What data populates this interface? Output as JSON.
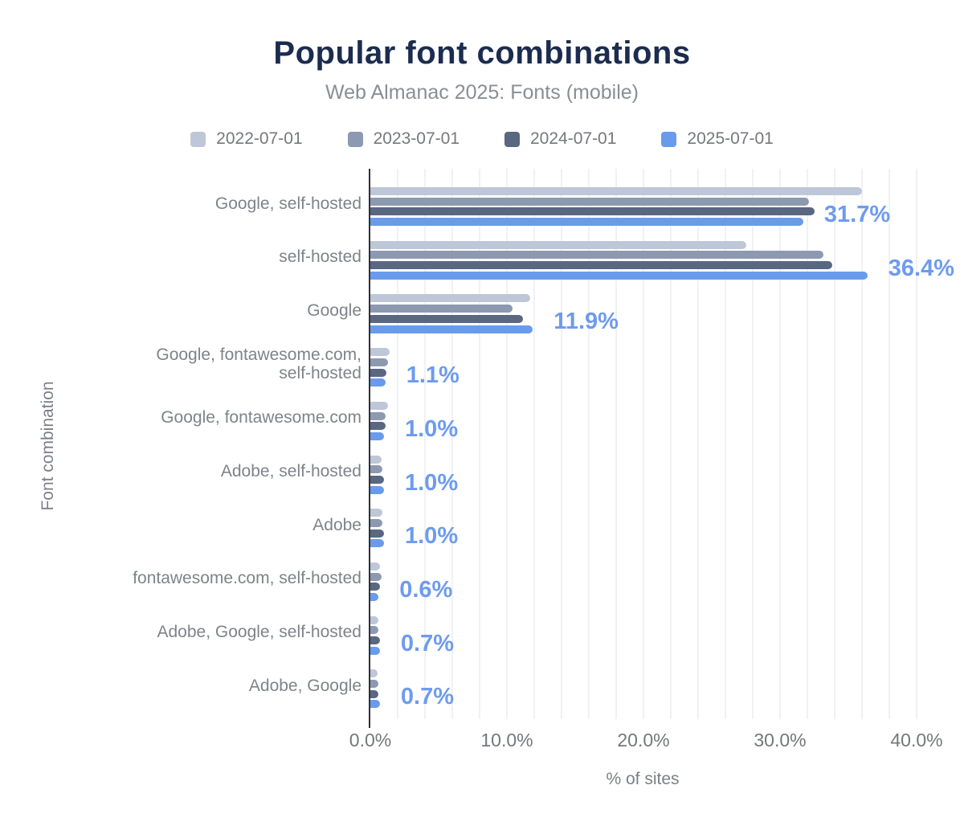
{
  "title": "Popular font combinations",
  "subtitle": "Web Almanac 2025: Fonts (mobile)",
  "colors": {
    "title_text": "#1b2c4f",
    "subtitle_text": "#8a8e94",
    "legend_text": "#76787c",
    "category_text": "#7f8389",
    "tick_text": "#74777c",
    "axis_title_text": "#7b7f85",
    "value_label_text": "#6d9bee",
    "axis_line": "#2f3136",
    "gridline": "#f0f1f4",
    "background": "#ffffff"
  },
  "legend": [
    {
      "label": "2022-07-01",
      "color": "#bec7d7"
    },
    {
      "label": "2023-07-01",
      "color": "#8d99b1"
    },
    {
      "label": "2024-07-01",
      "color": "#5a6781"
    },
    {
      "label": "2025-07-01",
      "color": "#699bec"
    }
  ],
  "chart_data": {
    "type": "bar",
    "orientation": "horizontal",
    "title": "Popular font combinations",
    "subtitle": "Web Almanac 2025: Fonts (mobile)",
    "xlabel": "% of sites",
    "ylabel": "Font combination",
    "xlim": [
      0,
      40
    ],
    "x_ticks": [
      {
        "label": "0.0%",
        "value": 0
      },
      {
        "label": "10.0%",
        "value": 10
      },
      {
        "label": "20.0%",
        "value": 20
      },
      {
        "label": "30.0%",
        "value": 30
      },
      {
        "label": "40.0%",
        "value": 40
      }
    ],
    "grid": "vertical minor gridlines every 2%",
    "legend_position": "top",
    "categories": [
      "Google, self-hosted",
      "self-hosted",
      "Google",
      "Google, fontawesome.com,\nself-hosted",
      "Google, fontawesome.com",
      "Adobe, self-hosted",
      "Adobe",
      "fontawesome.com, self-hosted",
      "Adobe, Google, self-hosted",
      "Adobe, Google"
    ],
    "series": [
      {
        "name": "2022-07-01",
        "color": "#bec7d7",
        "values": [
          36.0,
          27.5,
          11.7,
          1.4,
          1.3,
          0.8,
          0.9,
          0.7,
          0.6,
          0.5
        ]
      },
      {
        "name": "2023-07-01",
        "color": "#8d99b1",
        "values": [
          32.1,
          33.2,
          10.4,
          1.3,
          1.1,
          0.9,
          0.9,
          0.8,
          0.6,
          0.6
        ]
      },
      {
        "name": "2024-07-01",
        "color": "#5a6781",
        "values": [
          32.5,
          33.8,
          11.2,
          1.2,
          1.1,
          1.0,
          1.0,
          0.7,
          0.7,
          0.6
        ]
      },
      {
        "name": "2025-07-01",
        "color": "#699bec",
        "values": [
          31.7,
          36.4,
          11.9,
          1.1,
          1.0,
          1.0,
          1.0,
          0.6,
          0.7,
          0.7
        ],
        "data_labels": [
          "31.7%",
          "36.4%",
          "11.9%",
          "1.1%",
          "1.0%",
          "1.0%",
          "1.0%",
          "0.6%",
          "0.7%",
          "0.7%"
        ]
      }
    ]
  }
}
